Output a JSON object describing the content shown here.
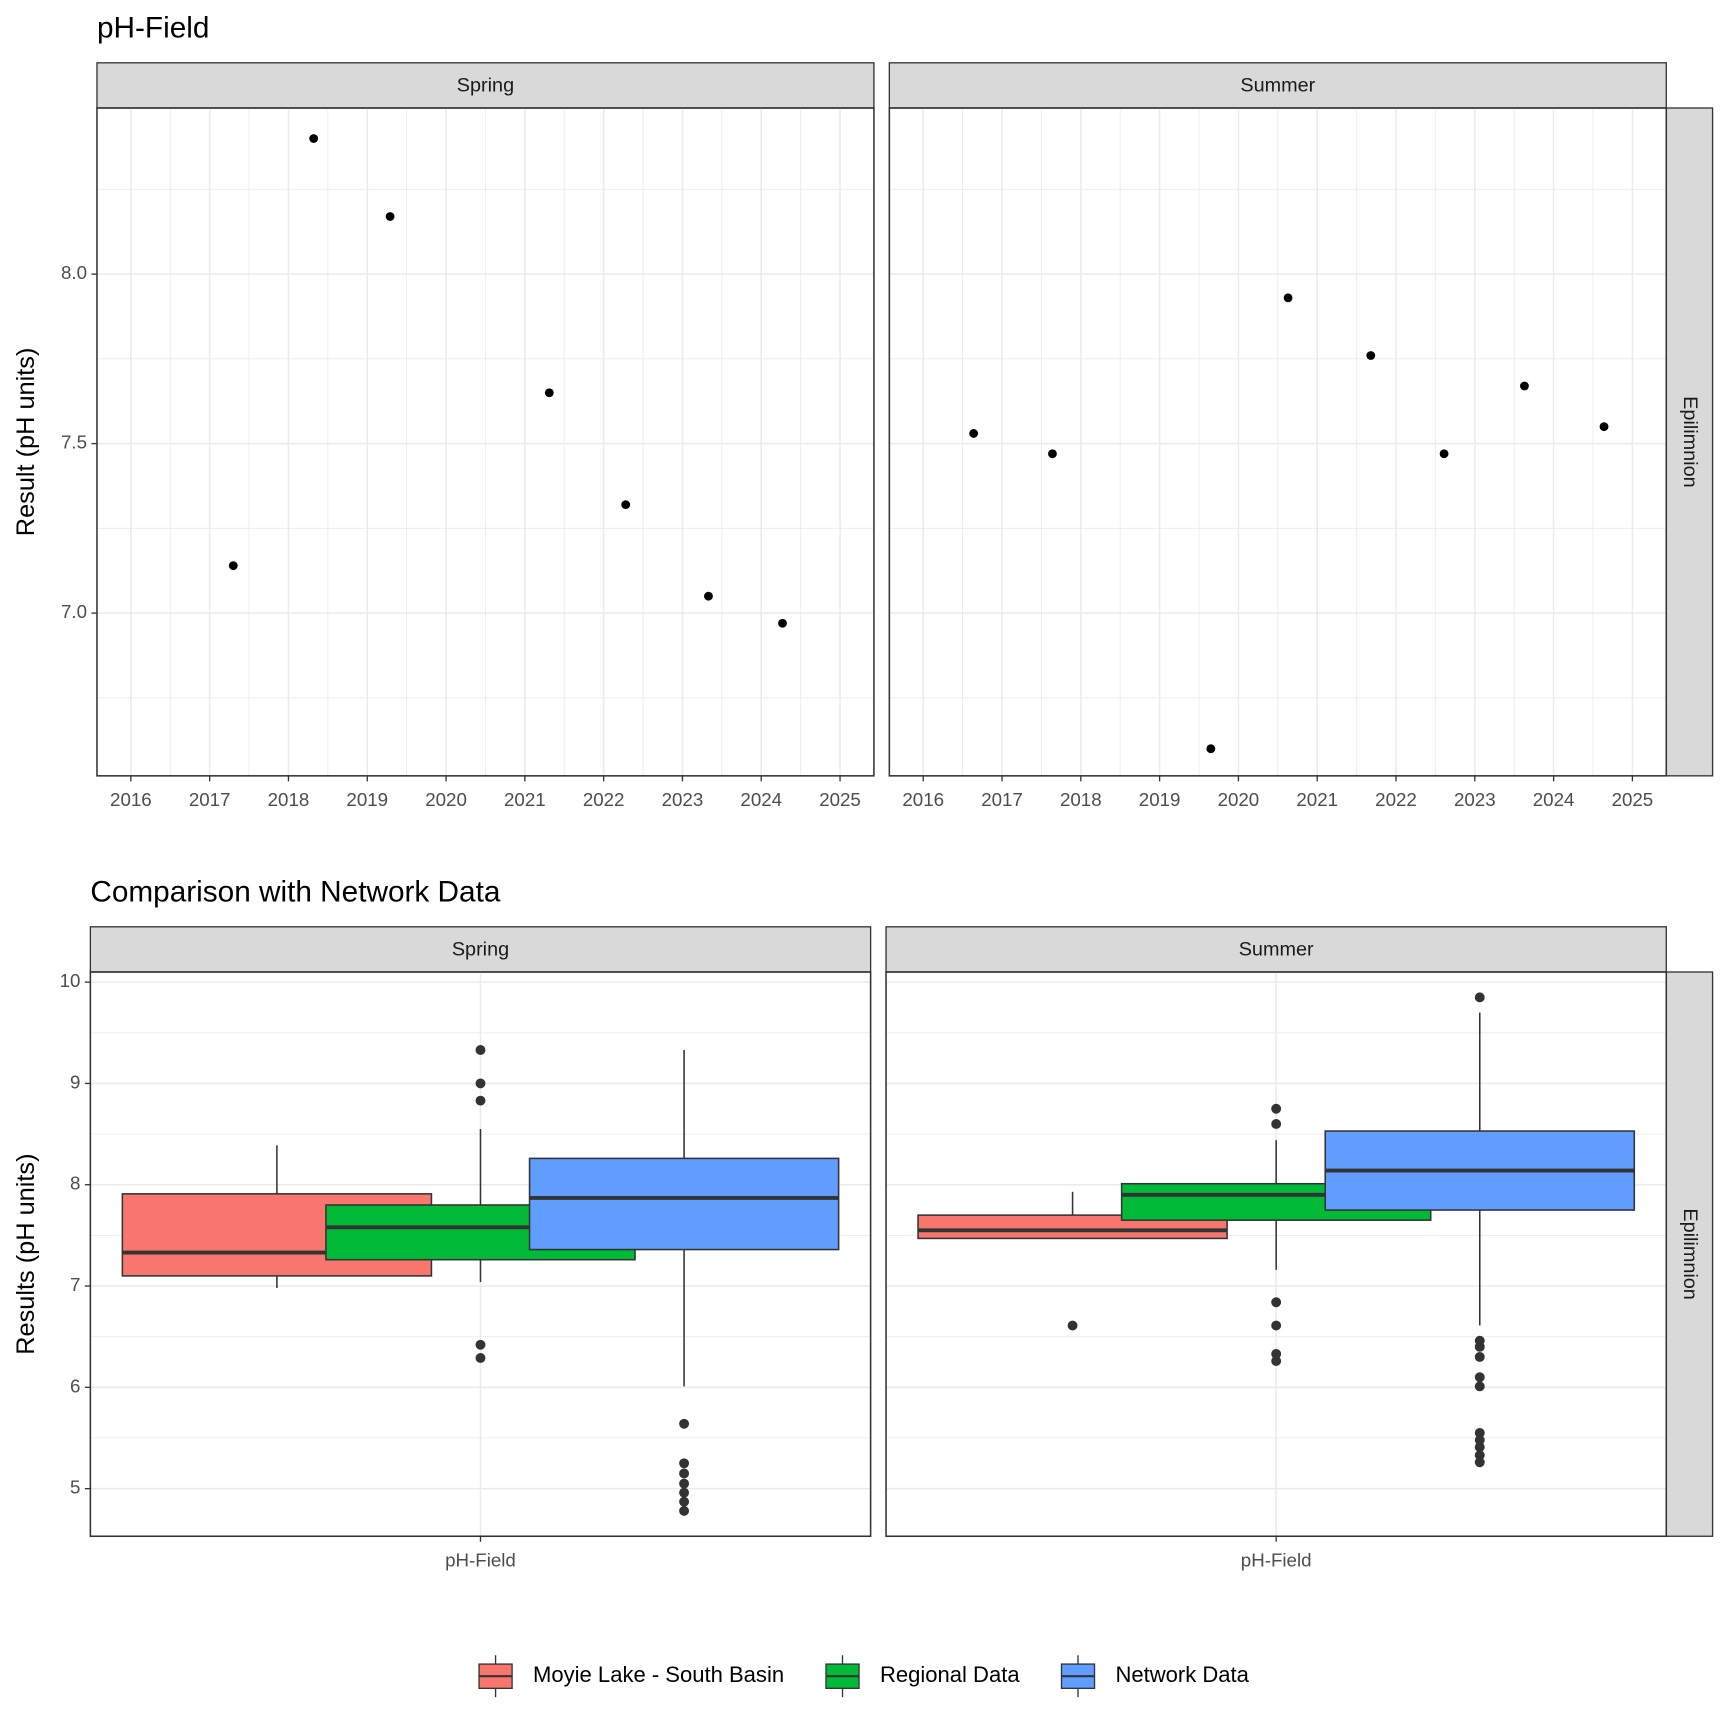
{
  "chart_data": [
    {
      "type": "scatter",
      "title": "pH-Field",
      "y_label": "Result (pH units)",
      "row_strip": "Epilimnion",
      "color": "#000000",
      "grid": true,
      "xlim": [
        2015.57,
        2025.43
      ],
      "xticks": [
        2016,
        2017,
        2018,
        2019,
        2020,
        2021,
        2022,
        2023,
        2024,
        2025
      ],
      "ylim": [
        6.52,
        8.49
      ],
      "yticks": [
        {
          "value": 7,
          "label": "7.0"
        },
        7.5,
        {
          "value": 8,
          "label": "8.0"
        }
      ],
      "facets": [
        {
          "name": "Spring",
          "x": [
            2017.3,
            2018.32,
            2019.29,
            2021.31,
            2022.28,
            2023.33,
            2024.27
          ],
          "values": [
            7.14,
            8.4,
            8.17,
            7.65,
            7.32,
            7.05,
            6.97
          ]
        },
        {
          "name": "Summer",
          "x": [
            2016.64,
            2017.64,
            2019.65,
            2020.63,
            2021.68,
            2022.61,
            2023.63,
            2024.64
          ],
          "values": [
            7.53,
            7.47,
            6.6,
            7.93,
            7.76,
            7.47,
            7.67,
            7.55
          ]
        }
      ]
    },
    {
      "type": "boxplot",
      "title": "Comparison with Network Data",
      "y_label": "Results (pH units)",
      "row_strip": "Epilimnion",
      "facets": [
        "Spring",
        "Summer"
      ],
      "categories": [
        "pH-Field"
      ],
      "grid": true,
      "legend": "bottom",
      "ylim": [
        4.53,
        10.1
      ],
      "yticks": [
        5,
        6,
        7,
        8,
        9,
        10
      ],
      "series": [
        {
          "name": "Moyie Lake - South Basin",
          "color": "#F8766D",
          "values": [
            {
              "low": 6.98,
              "q1": 7.1,
              "median": 7.33,
              "q3": 7.91,
              "high": 8.39,
              "outliers": []
            },
            {
              "low": 7.47,
              "q1": 7.47,
              "median": 7.55,
              "q3": 7.7,
              "high": 7.93,
              "outliers": [
                6.61
              ]
            }
          ]
        },
        {
          "name": "Regional Data",
          "color": "#00BA38",
          "values": [
            {
              "low": 7.04,
              "q1": 7.26,
              "median": 7.58,
              "q3": 7.8,
              "high": 8.55,
              "outliers": [
                9.33,
                9.0,
                8.83,
                6.42,
                6.29
              ]
            },
            {
              "low": 7.16,
              "q1": 7.65,
              "median": 7.9,
              "q3": 8.01,
              "high": 8.44,
              "outliers": [
                8.75,
                8.6,
                6.84,
                6.61,
                6.33,
                6.26
              ]
            }
          ]
        },
        {
          "name": "Network Data",
          "color": "#619CFF",
          "values": [
            {
              "low": 6.01,
              "q1": 7.36,
              "median": 7.87,
              "q3": 8.26,
              "high": 9.33,
              "outliers": [
                5.64,
                5.25,
                5.15,
                5.05,
                4.96,
                4.87,
                4.78
              ]
            },
            {
              "low": 6.61,
              "q1": 7.75,
              "median": 8.14,
              "q3": 8.53,
              "high": 9.7,
              "outliers": [
                9.85,
                6.46,
                6.4,
                6.3,
                6.1,
                6.01,
                5.55,
                5.48,
                5.41,
                5.33,
                5.26
              ]
            }
          ]
        }
      ]
    }
  ]
}
